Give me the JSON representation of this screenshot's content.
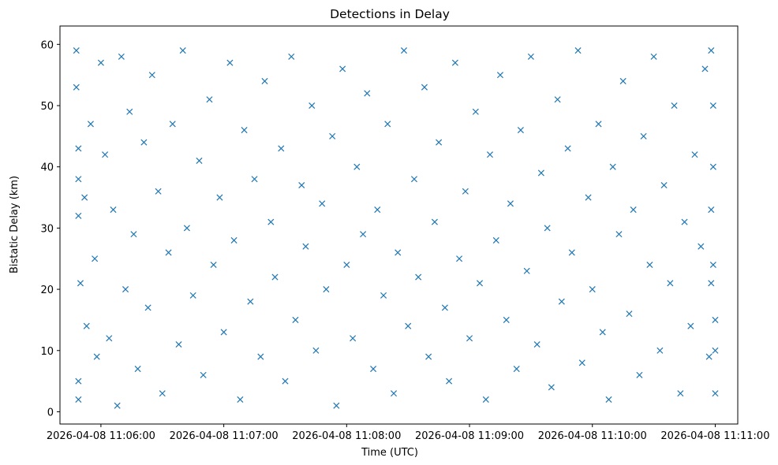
{
  "chart_data": {
    "type": "scatter",
    "title": "Detections in Delay",
    "xlabel": "Time (UTC)",
    "ylabel": "Bistatic Delay (km)",
    "x_ticks": [
      "2026-04-08 11:06:00",
      "2026-04-08 11:07:00",
      "2026-04-08 11:08:00",
      "2026-04-08 11:09:00",
      "2026-04-08 11:10:00",
      "2026-04-08 11:11:00"
    ],
    "y_ticks": [
      "0",
      "10",
      "20",
      "30",
      "40",
      "50",
      "60"
    ],
    "xlim": [
      "2026-04-08 11:05:40",
      "2026-04-08 11:11:11"
    ],
    "ylim": [
      -2,
      63
    ],
    "grid": false,
    "marker": "x",
    "series": [
      {
        "color": "#1f77b4",
        "points": [
          [
            "2026-04-08 11:05:48",
            59
          ],
          [
            "2026-04-08 11:05:48",
            53
          ],
          [
            "2026-04-08 11:05:49",
            43
          ],
          [
            "2026-04-08 11:05:49",
            38
          ],
          [
            "2026-04-08 11:05:49",
            32
          ],
          [
            "2026-04-08 11:05:50",
            21
          ],
          [
            "2026-04-08 11:05:49",
            5
          ],
          [
            "2026-04-08 11:05:49",
            2
          ],
          [
            "2026-04-08 11:05:52",
            35
          ],
          [
            "2026-04-08 11:05:53",
            14
          ],
          [
            "2026-04-08 11:05:55",
            47
          ],
          [
            "2026-04-08 11:05:57",
            25
          ],
          [
            "2026-04-08 11:05:58",
            9
          ],
          [
            "2026-04-08 11:06:00",
            57
          ],
          [
            "2026-04-08 11:06:02",
            42
          ],
          [
            "2026-04-08 11:06:04",
            12
          ],
          [
            "2026-04-08 11:06:06",
            33
          ],
          [
            "2026-04-08 11:06:08",
            1
          ],
          [
            "2026-04-08 11:06:10",
            58
          ],
          [
            "2026-04-08 11:06:12",
            20
          ],
          [
            "2026-04-08 11:06:14",
            49
          ],
          [
            "2026-04-08 11:06:16",
            29
          ],
          [
            "2026-04-08 11:06:18",
            7
          ],
          [
            "2026-04-08 11:06:21",
            44
          ],
          [
            "2026-04-08 11:06:23",
            17
          ],
          [
            "2026-04-08 11:06:25",
            55
          ],
          [
            "2026-04-08 11:06:28",
            36
          ],
          [
            "2026-04-08 11:06:30",
            3
          ],
          [
            "2026-04-08 11:06:33",
            26
          ],
          [
            "2026-04-08 11:06:35",
            47
          ],
          [
            "2026-04-08 11:06:38",
            11
          ],
          [
            "2026-04-08 11:06:40",
            59
          ],
          [
            "2026-04-08 11:06:42",
            30
          ],
          [
            "2026-04-08 11:06:45",
            19
          ],
          [
            "2026-04-08 11:06:48",
            41
          ],
          [
            "2026-04-08 11:06:50",
            6
          ],
          [
            "2026-04-08 11:06:53",
            51
          ],
          [
            "2026-04-08 11:06:55",
            24
          ],
          [
            "2026-04-08 11:06:58",
            35
          ],
          [
            "2026-04-08 11:07:00",
            13
          ],
          [
            "2026-04-08 11:07:03",
            57
          ],
          [
            "2026-04-08 11:07:05",
            28
          ],
          [
            "2026-04-08 11:07:08",
            2
          ],
          [
            "2026-04-08 11:07:10",
            46
          ],
          [
            "2026-04-08 11:07:13",
            18
          ],
          [
            "2026-04-08 11:07:15",
            38
          ],
          [
            "2026-04-08 11:07:18",
            9
          ],
          [
            "2026-04-08 11:07:20",
            54
          ],
          [
            "2026-04-08 11:07:23",
            31
          ],
          [
            "2026-04-08 11:07:25",
            22
          ],
          [
            "2026-04-08 11:07:28",
            43
          ],
          [
            "2026-04-08 11:07:30",
            5
          ],
          [
            "2026-04-08 11:07:33",
            58
          ],
          [
            "2026-04-08 11:07:35",
            15
          ],
          [
            "2026-04-08 11:07:38",
            37
          ],
          [
            "2026-04-08 11:07:40",
            27
          ],
          [
            "2026-04-08 11:07:43",
            50
          ],
          [
            "2026-04-08 11:07:45",
            10
          ],
          [
            "2026-04-08 11:07:48",
            34
          ],
          [
            "2026-04-08 11:07:50",
            20
          ],
          [
            "2026-04-08 11:07:53",
            45
          ],
          [
            "2026-04-08 11:07:55",
            1
          ],
          [
            "2026-04-08 11:07:58",
            56
          ],
          [
            "2026-04-08 11:08:00",
            24
          ],
          [
            "2026-04-08 11:08:03",
            12
          ],
          [
            "2026-04-08 11:08:05",
            40
          ],
          [
            "2026-04-08 11:08:08",
            29
          ],
          [
            "2026-04-08 11:08:10",
            52
          ],
          [
            "2026-04-08 11:08:13",
            7
          ],
          [
            "2026-04-08 11:08:15",
            33
          ],
          [
            "2026-04-08 11:08:18",
            19
          ],
          [
            "2026-04-08 11:08:20",
            47
          ],
          [
            "2026-04-08 11:08:23",
            3
          ],
          [
            "2026-04-08 11:08:25",
            26
          ],
          [
            "2026-04-08 11:08:28",
            59
          ],
          [
            "2026-04-08 11:08:30",
            14
          ],
          [
            "2026-04-08 11:08:33",
            38
          ],
          [
            "2026-04-08 11:08:35",
            22
          ],
          [
            "2026-04-08 11:08:38",
            53
          ],
          [
            "2026-04-08 11:08:40",
            9
          ],
          [
            "2026-04-08 11:08:43",
            31
          ],
          [
            "2026-04-08 11:08:45",
            44
          ],
          [
            "2026-04-08 11:08:48",
            17
          ],
          [
            "2026-04-08 11:08:50",
            5
          ],
          [
            "2026-04-08 11:08:53",
            57
          ],
          [
            "2026-04-08 11:08:55",
            25
          ],
          [
            "2026-04-08 11:08:58",
            36
          ],
          [
            "2026-04-08 11:09:00",
            12
          ],
          [
            "2026-04-08 11:09:03",
            49
          ],
          [
            "2026-04-08 11:09:05",
            21
          ],
          [
            "2026-04-08 11:09:08",
            2
          ],
          [
            "2026-04-08 11:09:10",
            42
          ],
          [
            "2026-04-08 11:09:13",
            28
          ],
          [
            "2026-04-08 11:09:15",
            55
          ],
          [
            "2026-04-08 11:09:18",
            15
          ],
          [
            "2026-04-08 11:09:20",
            34
          ],
          [
            "2026-04-08 11:09:23",
            7
          ],
          [
            "2026-04-08 11:09:25",
            46
          ],
          [
            "2026-04-08 11:09:28",
            23
          ],
          [
            "2026-04-08 11:09:30",
            58
          ],
          [
            "2026-04-08 11:09:33",
            11
          ],
          [
            "2026-04-08 11:09:35",
            39
          ],
          [
            "2026-04-08 11:09:38",
            30
          ],
          [
            "2026-04-08 11:09:40",
            4
          ],
          [
            "2026-04-08 11:09:43",
            51
          ],
          [
            "2026-04-08 11:09:45",
            18
          ],
          [
            "2026-04-08 11:09:48",
            43
          ],
          [
            "2026-04-08 11:09:50",
            26
          ],
          [
            "2026-04-08 11:09:53",
            59
          ],
          [
            "2026-04-08 11:09:55",
            8
          ],
          [
            "2026-04-08 11:09:58",
            35
          ],
          [
            "2026-04-08 11:10:00",
            20
          ],
          [
            "2026-04-08 11:10:03",
            47
          ],
          [
            "2026-04-08 11:10:05",
            13
          ],
          [
            "2026-04-08 11:10:08",
            2
          ],
          [
            "2026-04-08 11:10:10",
            40
          ],
          [
            "2026-04-08 11:10:13",
            29
          ],
          [
            "2026-04-08 11:10:15",
            54
          ],
          [
            "2026-04-08 11:10:18",
            16
          ],
          [
            "2026-04-08 11:10:20",
            33
          ],
          [
            "2026-04-08 11:10:23",
            6
          ],
          [
            "2026-04-08 11:10:25",
            45
          ],
          [
            "2026-04-08 11:10:28",
            24
          ],
          [
            "2026-04-08 11:10:30",
            58
          ],
          [
            "2026-04-08 11:10:33",
            10
          ],
          [
            "2026-04-08 11:10:35",
            37
          ],
          [
            "2026-04-08 11:10:38",
            21
          ],
          [
            "2026-04-08 11:10:40",
            50
          ],
          [
            "2026-04-08 11:10:43",
            3
          ],
          [
            "2026-04-08 11:10:45",
            31
          ],
          [
            "2026-04-08 11:10:48",
            14
          ],
          [
            "2026-04-08 11:10:50",
            42
          ],
          [
            "2026-04-08 11:10:53",
            27
          ],
          [
            "2026-04-08 11:10:55",
            56
          ],
          [
            "2026-04-08 11:10:57",
            9
          ],
          [
            "2026-04-08 11:10:58",
            33
          ],
          [
            "2026-04-08 11:10:58",
            59
          ],
          [
            "2026-04-08 11:10:59",
            40
          ],
          [
            "2026-04-08 11:10:59",
            24
          ],
          [
            "2026-04-08 11:10:59",
            50
          ],
          [
            "2026-04-08 11:11:00",
            3
          ],
          [
            "2026-04-08 11:11:00",
            15
          ],
          [
            "2026-04-08 11:11:00",
            10
          ],
          [
            "2026-04-08 11:10:58",
            21
          ]
        ]
      }
    ]
  }
}
